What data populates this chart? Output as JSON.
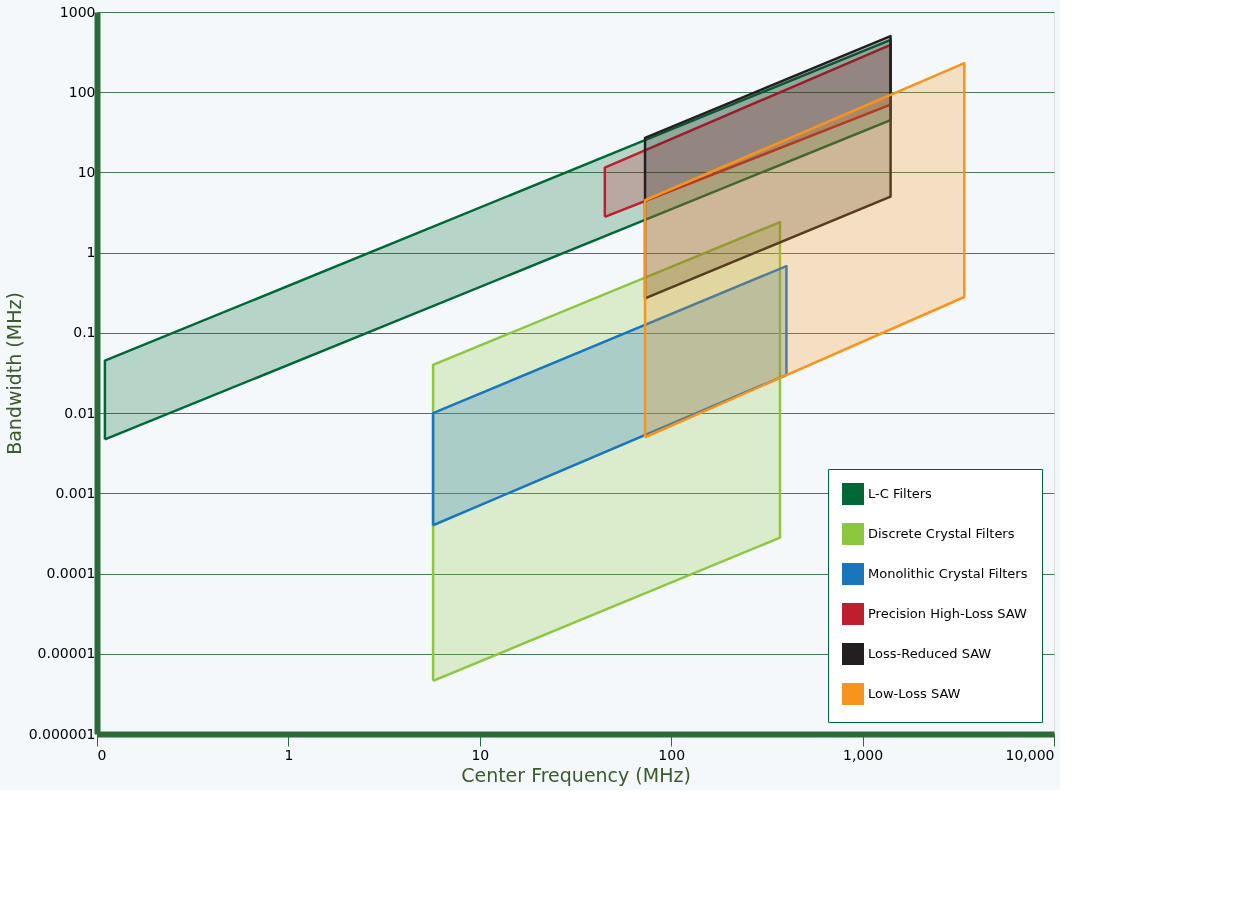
{
  "chart_data": {
    "type": "area",
    "xlabel": "Center Frequency (MHz)",
    "ylabel": "Bandwidth (MHz)",
    "log": "xy",
    "grid": "y",
    "legend": "bottom right",
    "xlim": [
      0.1,
      10000
    ],
    "xticks": [
      {
        "value": 0.1,
        "label": "0"
      },
      1,
      10,
      100,
      {
        "value": 1000,
        "label": "1,000"
      },
      {
        "value": 10000,
        "label": "10,000"
      }
    ],
    "ylim": [
      1e-06,
      1000
    ],
    "yticks": [
      1000,
      100,
      10,
      1,
      0.1,
      0.01,
      0.001,
      0.0001,
      {
        "value": 1e-05,
        "label": "0.00001"
      },
      {
        "value": 1e-06,
        "label": "0.000001"
      }
    ],
    "series": [
      {
        "name": "L-C Filters",
        "color": "#006837",
        "x": [
          0.11,
          0.11,
          1400,
          1400,
          0.11
        ],
        "values": [
          0.0047,
          0.045,
          450,
          45,
          0.0047
        ]
      },
      {
        "name": "Discrete Crystal Filters",
        "color": "#8dc63f",
        "x": [
          5.7,
          5.7,
          370,
          370,
          5.7
        ],
        "values": [
          4.6e-06,
          0.04,
          2.4,
          0.00028,
          4.6e-06
        ]
      },
      {
        "name": "Monolithic Crystal Filters",
        "color": "#1b75bc",
        "x": [
          5.7,
          5.7,
          400,
          400,
          5.7
        ],
        "values": [
          0.0004,
          0.01,
          0.68,
          0.03,
          0.0004
        ]
      },
      {
        "name": "Precision High-Loss SAW",
        "color": "#be1e2d",
        "x": [
          45,
          45,
          1400,
          1400,
          45
        ],
        "values": [
          2.8,
          11.5,
          390,
          70,
          2.8
        ]
      },
      {
        "name": "Loss-Reduced SAW",
        "color": "#231f20",
        "x": [
          73,
          73,
          1400,
          1400,
          73
        ],
        "values": [
          0.27,
          27,
          500,
          5,
          0.27
        ]
      },
      {
        "name": "Low-Loss SAW",
        "color": "#f7941d",
        "x": [
          73,
          73,
          3400,
          3400,
          73
        ],
        "values": [
          0.005,
          4.5,
          230,
          0.28,
          0.005
        ]
      }
    ]
  }
}
